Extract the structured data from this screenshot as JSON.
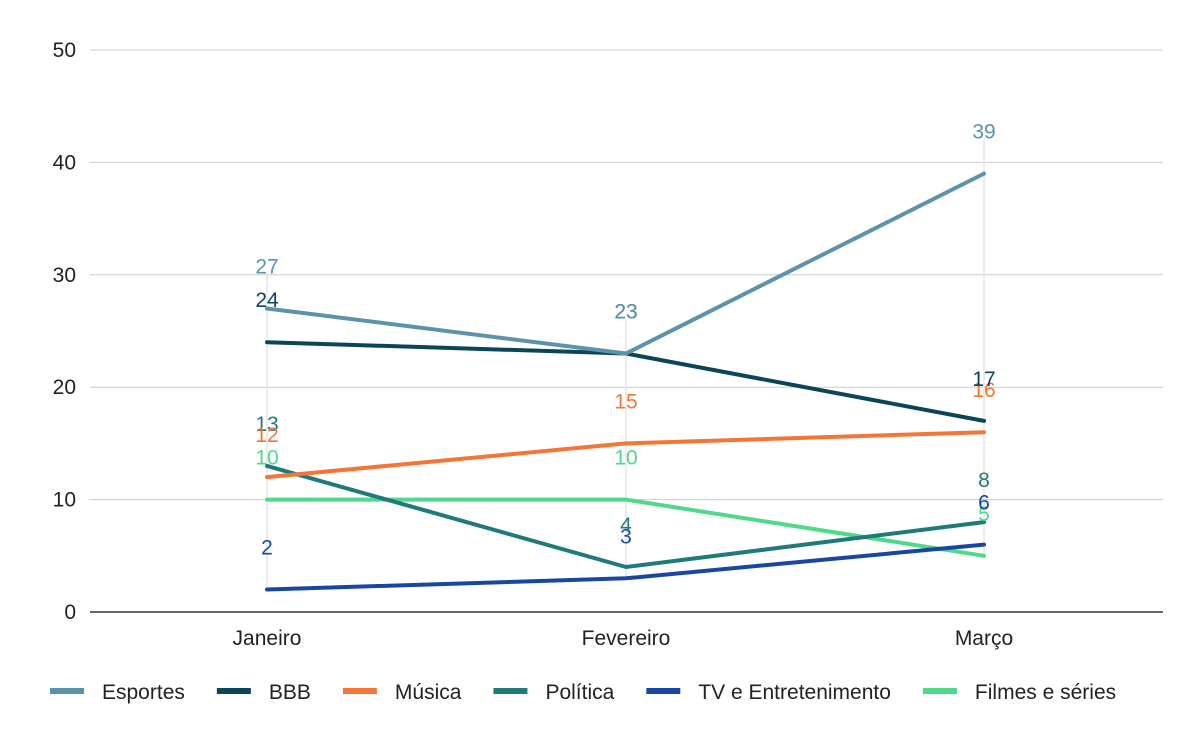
{
  "chart_data": {
    "type": "line",
    "title": "",
    "xlabel": "",
    "ylabel": "",
    "categories": [
      "Janeiro",
      "Fevereiro",
      "Março"
    ],
    "ylim": [
      0,
      50
    ],
    "yticks": [
      0,
      10,
      20,
      30,
      40,
      50
    ],
    "grid": true,
    "legend_position": "bottom",
    "series": [
      {
        "name": "Esportes",
        "color": "#5b93ad",
        "values": [
          27,
          23,
          39
        ]
      },
      {
        "name": "BBB",
        "color": "#0b4658",
        "values": [
          24,
          23,
          17
        ]
      },
      {
        "name": "Música",
        "color": "#f47536",
        "values": [
          12,
          15,
          16
        ]
      },
      {
        "name": "Política",
        "color": "#1f7a7a",
        "values": [
          13,
          4,
          8
        ]
      },
      {
        "name": "TV e Entretenimento",
        "color": "#1a46a3",
        "values": [
          2,
          3,
          6
        ]
      },
      {
        "name": "Filmes e séries",
        "color": "#4fd98b",
        "values": [
          10,
          10,
          5
        ]
      }
    ]
  }
}
